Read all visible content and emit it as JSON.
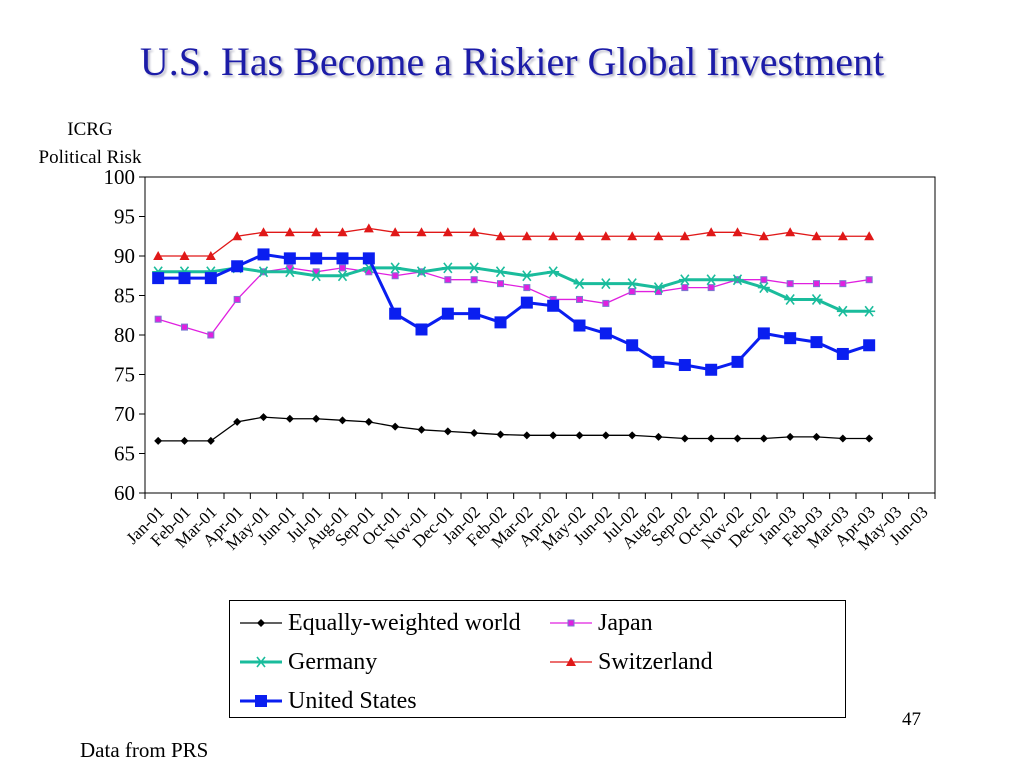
{
  "slide": {
    "title": "U.S. Has Become a Riskier Global Investment",
    "page_number": "47",
    "source": "Data from PRS"
  },
  "chart_data": {
    "type": "line",
    "ylabel": [
      "ICRG",
      "Political Risk"
    ],
    "xlabel": "",
    "ylim": [
      60,
      100
    ],
    "yticks": [
      60,
      65,
      70,
      75,
      80,
      85,
      90,
      95,
      100
    ],
    "grid": false,
    "legend_position": "bottom",
    "categories": [
      "Jan-01",
      "Feb-01",
      "Mar-01",
      "Apr-01",
      "May-01",
      "Jun-01",
      "Jul-01",
      "Aug-01",
      "Sep-01",
      "Oct-01",
      "Nov-01",
      "Dec-01",
      "Jan-02",
      "Feb-02",
      "Mar-02",
      "Apr-02",
      "May-02",
      "Jun-02",
      "Jul-02",
      "Aug-02",
      "Sep-02",
      "Oct-02",
      "Nov-02",
      "Dec-02",
      "Jan-03",
      "Feb-03",
      "Mar-03",
      "Apr-03",
      "May-03",
      "Jun-03"
    ],
    "series": [
      {
        "name": "Equally-weighted world",
        "color": "#000000",
        "marker": "diamond",
        "values": [
          66.6,
          66.6,
          66.6,
          69.0,
          69.6,
          69.4,
          69.4,
          69.2,
          69.0,
          68.4,
          68.0,
          67.8,
          67.6,
          67.4,
          67.3,
          67.3,
          67.3,
          67.3,
          67.3,
          67.1,
          66.9,
          66.9,
          66.9,
          66.9,
          67.1,
          67.1,
          66.9,
          66.9,
          null,
          null
        ]
      },
      {
        "name": "Japan",
        "color": "#e020e0",
        "marker": "square",
        "values": [
          82.0,
          81.0,
          80.0,
          84.5,
          88.0,
          88.5,
          88.0,
          88.5,
          88.0,
          87.5,
          88.0,
          87.0,
          87.0,
          86.5,
          86.0,
          84.5,
          84.5,
          84.0,
          85.5,
          85.5,
          86.0,
          86.0,
          87.0,
          87.0,
          86.5,
          86.5,
          86.5,
          87.0,
          null,
          null
        ]
      },
      {
        "name": "Germany",
        "color": "#1abc9c",
        "marker": "asterisk",
        "values": [
          88.0,
          88.0,
          88.0,
          88.5,
          88.0,
          88.0,
          87.5,
          87.5,
          88.5,
          88.5,
          88.0,
          88.5,
          88.5,
          88.0,
          87.5,
          88.0,
          86.5,
          86.5,
          86.5,
          86.0,
          87.0,
          87.0,
          87.0,
          86.0,
          84.5,
          84.5,
          83.0,
          83.0,
          null,
          null
        ]
      },
      {
        "name": "Switzerland",
        "color": "#e01818",
        "marker": "triangle",
        "values": [
          90.0,
          90.0,
          90.0,
          92.5,
          93.0,
          93.0,
          93.0,
          93.0,
          93.5,
          93.0,
          93.0,
          93.0,
          93.0,
          92.5,
          92.5,
          92.5,
          92.5,
          92.5,
          92.5,
          92.5,
          92.5,
          93.0,
          93.0,
          92.5,
          93.0,
          92.5,
          92.5,
          92.5,
          null,
          null
        ]
      },
      {
        "name": "United States",
        "color": "#0a1ef0",
        "marker": "bigsquare",
        "values": [
          87.2,
          87.2,
          87.2,
          88.7,
          90.2,
          89.7,
          89.7,
          89.7,
          89.7,
          82.7,
          80.7,
          82.7,
          82.7,
          81.6,
          84.1,
          83.7,
          81.2,
          80.2,
          78.7,
          76.6,
          76.2,
          75.6,
          76.6,
          80.2,
          79.6,
          79.1,
          77.6,
          78.7,
          null,
          null
        ]
      }
    ]
  }
}
